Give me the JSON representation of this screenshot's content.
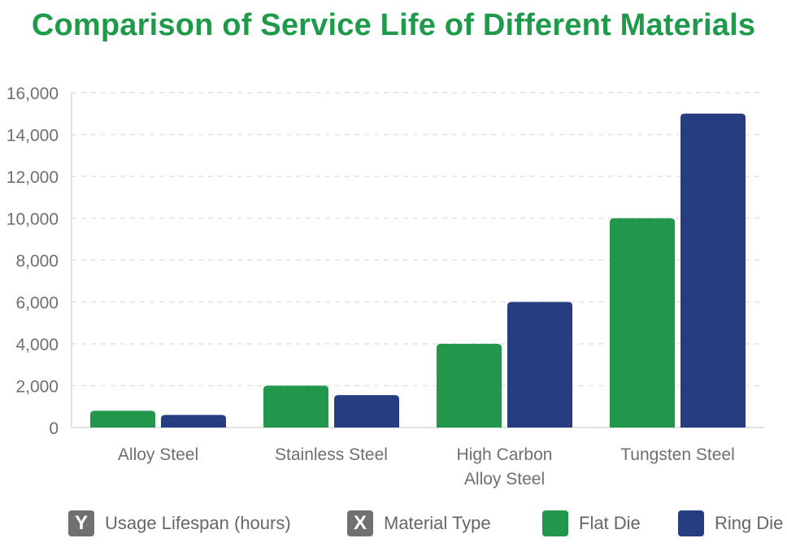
{
  "chart_data": {
    "type": "bar",
    "title": "Comparison of Service Life of Different Materials",
    "categories": [
      [
        "Alloy Steel"
      ],
      [
        "Stainless Steel"
      ],
      [
        "High Carbon",
        "Alloy Steel"
      ],
      [
        "Tungsten Steel"
      ]
    ],
    "series": [
      {
        "name": "Flat Die",
        "color": "#22964a",
        "values": [
          800,
          2000,
          4000,
          10000
        ]
      },
      {
        "name": "Ring Die",
        "color": "#263e80",
        "values": [
          600,
          1550,
          6000,
          15000
        ]
      }
    ],
    "ylim": [
      0,
      16000
    ],
    "yticks": [
      "0",
      "2,000",
      "4,000",
      "6,000",
      "8,000",
      "10,000",
      "12,000",
      "14,000",
      "16,000"
    ],
    "ytick_values": [
      0,
      2000,
      4000,
      6000,
      8000,
      10000,
      12000,
      14000,
      16000
    ],
    "ylabel": "Usage Lifespan (hours)",
    "xlabel": "Material Type",
    "grid": true,
    "legend_position": "bottom"
  },
  "legend": {
    "y_axis": {
      "badge": "Y",
      "label": "Usage Lifespan (hours)",
      "color": "#707070"
    },
    "x_axis": {
      "badge": "X",
      "label": "Material Type",
      "color": "#707070"
    },
    "flat_die": {
      "label": "Flat Die",
      "color": "#22964a"
    },
    "ring_die": {
      "label": "Ring Die",
      "color": "#263e80"
    }
  },
  "colors": {
    "title": "#1f9a4a",
    "grid": "#e2e2e2",
    "axis": "#d8d8d8"
  }
}
